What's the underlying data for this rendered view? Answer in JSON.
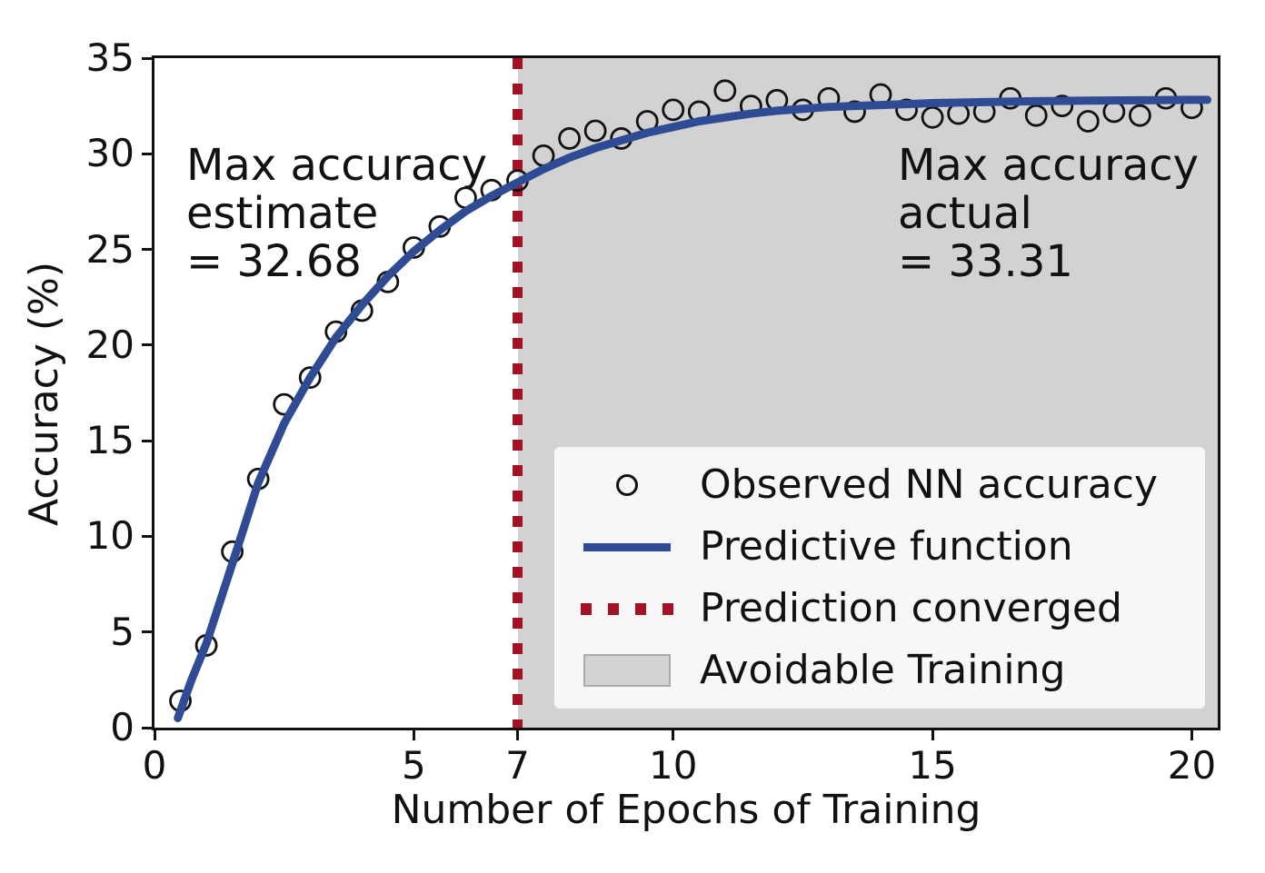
{
  "figure": {
    "background": "#ffffff",
    "annotations": {
      "estimate": {
        "text": "Max accuracy\nestimate\n= 32.68"
      },
      "actual": {
        "text": "Max accuracy\nactual\n= 33.31"
      }
    }
  },
  "chart_data": {
    "type": "scatter",
    "title": "",
    "xlabel": "Number of Epochs of Training",
    "ylabel": "Accuracy (%)",
    "xlim": [
      0,
      20.5
    ],
    "ylim": [
      0,
      35
    ],
    "xticks": [
      0,
      5,
      7,
      10,
      15,
      20
    ],
    "yticks": [
      0,
      5,
      10,
      15,
      20,
      25,
      30,
      35
    ],
    "grid": false,
    "legend_position": "lower-right-inside",
    "max_accuracy_estimate": 32.68,
    "max_accuracy_actual": 33.31,
    "prediction_converged_epoch": 7,
    "avoidable_training_range": [
      7,
      20.5
    ],
    "axis_color": "#111111",
    "series": [
      {
        "name": "Observed NN accuracy",
        "type": "scatter",
        "marker": "open-circle",
        "color": "#111111",
        "x": [
          0.5,
          1,
          1.5,
          2,
          2.5,
          3,
          3.5,
          4,
          4.5,
          5,
          5.5,
          6,
          6.5,
          7,
          7.5,
          8,
          8.5,
          9,
          9.5,
          10,
          10.5,
          11,
          11.5,
          12,
          12.5,
          13,
          13.5,
          14,
          14.5,
          15,
          15.5,
          16,
          16.5,
          17,
          17.5,
          18,
          18.5,
          19,
          19.5,
          20
        ],
        "y": [
          1.4,
          4.3,
          9.2,
          13.0,
          16.9,
          18.3,
          20.7,
          21.8,
          23.3,
          25.1,
          26.2,
          27.7,
          28.1,
          28.6,
          29.9,
          30.8,
          31.2,
          30.8,
          31.7,
          32.3,
          32.2,
          33.3,
          32.5,
          32.8,
          32.3,
          32.9,
          32.2,
          33.1,
          32.3,
          31.9,
          32.1,
          32.2,
          32.9,
          32.0,
          32.5,
          31.7,
          32.2,
          32.0,
          32.9,
          32.4
        ]
      },
      {
        "name": "Predictive function",
        "type": "line",
        "color": "#2e4b94",
        "x": [
          0.45,
          0.7,
          1,
          1.3,
          1.6,
          2,
          2.5,
          3,
          3.5,
          4,
          4.5,
          5,
          5.5,
          6,
          6.5,
          7,
          7.5,
          8,
          8.5,
          9,
          9.5,
          10,
          10.5,
          11,
          11.5,
          12,
          13,
          14,
          15,
          16,
          17,
          18,
          19,
          20,
          20.3
        ],
        "y": [
          0.5,
          2.4,
          4.4,
          6.9,
          9.4,
          12.8,
          15.9,
          18.3,
          20.4,
          22.1,
          23.6,
          24.9,
          26.0,
          27.0,
          27.8,
          28.5,
          29.2,
          29.8,
          30.3,
          30.7,
          31.1,
          31.4,
          31.7,
          31.9,
          32.1,
          32.25,
          32.45,
          32.55,
          32.65,
          32.7,
          32.75,
          32.78,
          32.8,
          32.82,
          32.82
        ]
      },
      {
        "name": "Prediction converged",
        "type": "vline",
        "color": "#a51226",
        "x": 7
      },
      {
        "name": "Avoidable Training",
        "type": "region",
        "color": "#d2d2d2",
        "x_range": [
          7,
          20.5
        ]
      }
    ]
  }
}
